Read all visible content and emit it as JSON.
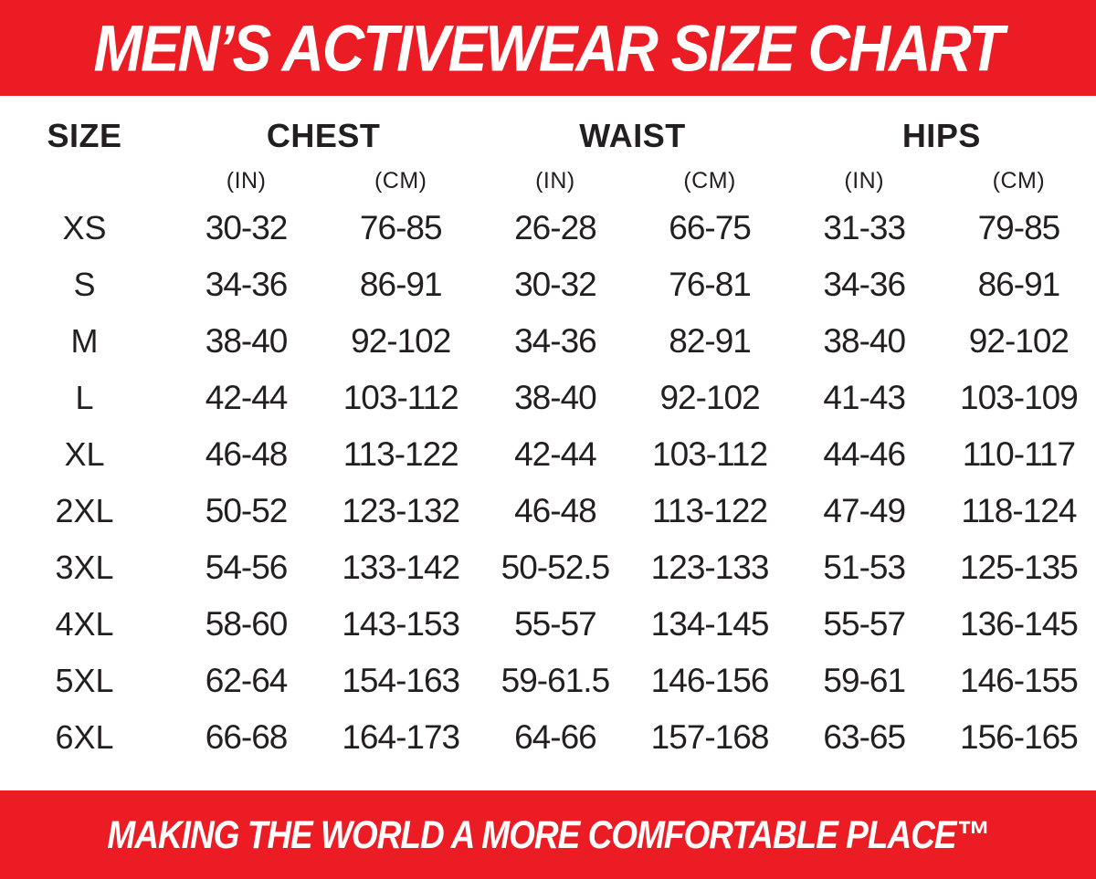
{
  "header": {
    "title": "MEN’S ACTIVEWEAR SIZE CHART"
  },
  "footer": {
    "tagline": "MAKING THE WORLD A MORE COMFORTABLE PLACE™"
  },
  "colors": {
    "banner_red": "#EC1C24",
    "text_dark": "#231F20",
    "banner_text": "#FFFFFF"
  },
  "table": {
    "size_label": "SIZE",
    "groups": [
      {
        "label": "CHEST"
      },
      {
        "label": "WAIST"
      },
      {
        "label": "HIPS"
      }
    ],
    "units": [
      "",
      "(IN)",
      "(CM)",
      "(IN)",
      "(CM)",
      "(IN)",
      "(CM)"
    ],
    "columns": [
      "size",
      "chest_in",
      "chest_cm",
      "waist_in",
      "waist_cm",
      "hips_in",
      "hips_cm"
    ],
    "rows": [
      {
        "size": "XS",
        "chest_in": "30-32",
        "chest_cm": "76-85",
        "waist_in": "26-28",
        "waist_cm": "66-75",
        "hips_in": "31-33",
        "hips_cm": "79-85"
      },
      {
        "size": "S",
        "chest_in": "34-36",
        "chest_cm": "86-91",
        "waist_in": "30-32",
        "waist_cm": "76-81",
        "hips_in": "34-36",
        "hips_cm": "86-91"
      },
      {
        "size": "M",
        "chest_in": "38-40",
        "chest_cm": "92-102",
        "waist_in": "34-36",
        "waist_cm": "82-91",
        "hips_in": "38-40",
        "hips_cm": "92-102"
      },
      {
        "size": "L",
        "chest_in": "42-44",
        "chest_cm": "103-112",
        "waist_in": "38-40",
        "waist_cm": "92-102",
        "hips_in": "41-43",
        "hips_cm": "103-109"
      },
      {
        "size": "XL",
        "chest_in": "46-48",
        "chest_cm": "113-122",
        "waist_in": "42-44",
        "waist_cm": "103-112",
        "hips_in": "44-46",
        "hips_cm": "110-117"
      },
      {
        "size": "2XL",
        "chest_in": "50-52",
        "chest_cm": "123-132",
        "waist_in": "46-48",
        "waist_cm": "113-122",
        "hips_in": "47-49",
        "hips_cm": "118-124"
      },
      {
        "size": "3XL",
        "chest_in": "54-56",
        "chest_cm": "133-142",
        "waist_in": "50-52.5",
        "waist_cm": "123-133",
        "hips_in": "51-53",
        "hips_cm": "125-135"
      },
      {
        "size": "4XL",
        "chest_in": "58-60",
        "chest_cm": "143-153",
        "waist_in": "55-57",
        "waist_cm": "134-145",
        "hips_in": "55-57",
        "hips_cm": "136-145"
      },
      {
        "size": "5XL",
        "chest_in": "62-64",
        "chest_cm": "154-163",
        "waist_in": "59-61.5",
        "waist_cm": "146-156",
        "hips_in": "59-61",
        "hips_cm": "146-155"
      },
      {
        "size": "6XL",
        "chest_in": "66-68",
        "chest_cm": "164-173",
        "waist_in": "64-66",
        "waist_cm": "157-168",
        "hips_in": "63-65",
        "hips_cm": "156-165"
      }
    ]
  }
}
